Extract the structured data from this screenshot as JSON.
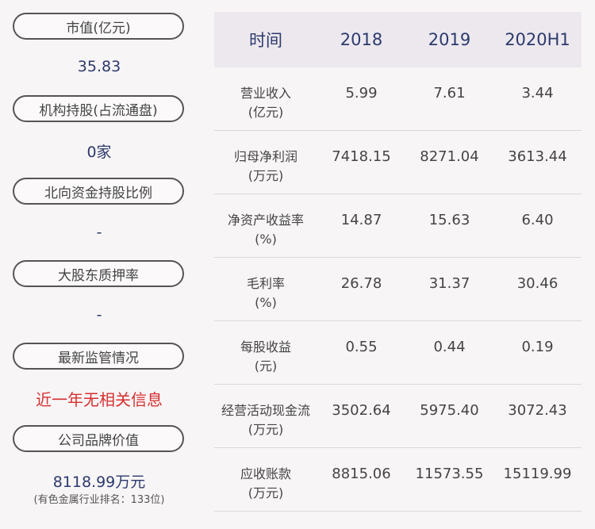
{
  "left": {
    "market_cap_label": "市值(亿元)",
    "market_cap_value": "35.83",
    "institution_label": "机构持股(占流通盘)",
    "institution_value": "0家",
    "northbound_label": "北向资金持股比例",
    "northbound_value": "-",
    "pledge_label": "大股东质押率",
    "pledge_value": "-",
    "regulation_label": "最新监管情况",
    "regulation_value": "近一年无相关信息",
    "brand_label": "公司品牌价值",
    "brand_value": "8118.99万元",
    "brand_rank": "(有色金属行业排名：133位)"
  },
  "table": {
    "headers": [
      "时间",
      "2018",
      "2019",
      "2020H1"
    ],
    "rows": [
      {
        "label1": "营业收入",
        "label2": "(亿元)",
        "values": [
          "5.99",
          "7.61",
          "3.44"
        ]
      },
      {
        "label1": "归母净利润",
        "label2": "(万元)",
        "values": [
          "7418.15",
          "8271.04",
          "3613.44"
        ]
      },
      {
        "label1": "净资产收益率",
        "label2": "(%)",
        "values": [
          "14.87",
          "15.63",
          "6.40"
        ]
      },
      {
        "label1": "毛利率",
        "label2": "(%)",
        "values": [
          "26.78",
          "31.37",
          "30.46"
        ]
      },
      {
        "label1": "每股收益",
        "label2": "(元)",
        "values": [
          "0.55",
          "0.44",
          "0.19"
        ]
      },
      {
        "label1": "经营活动现金流",
        "label2": "(万元)",
        "values": [
          "3502.64",
          "5975.40",
          "3072.43"
        ]
      },
      {
        "label1": "应收账款",
        "label2": "(万元)",
        "values": [
          "8815.06",
          "11573.55",
          "15119.99"
        ]
      }
    ]
  }
}
